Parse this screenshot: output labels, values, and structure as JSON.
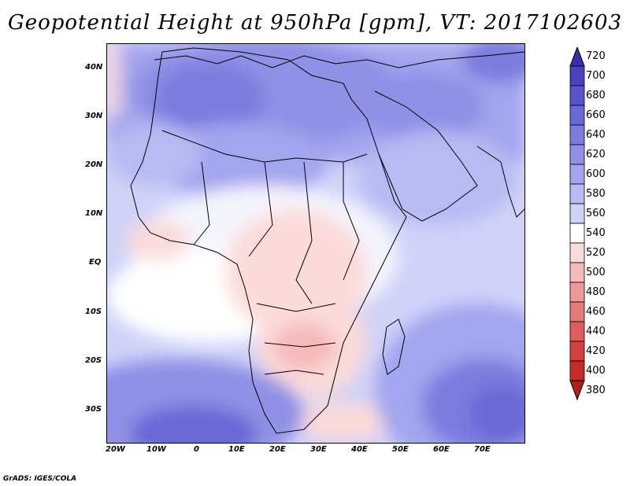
{
  "title": "Geopotential Height at 950hPa [gpm], VT: 2017102603",
  "credit": "GrADS: IGES/COLA",
  "chart_data": {
    "type": "contour-map",
    "variable": "Geopotential Height",
    "level": "950hPa",
    "units": "gpm",
    "valid_time": "2017102603",
    "region": "Africa and Middle East",
    "lon_range": [
      -22,
      80
    ],
    "lat_range": [
      -37,
      45
    ],
    "lat_ticks": [
      "40N",
      "30N",
      "20N",
      "10N",
      "EQ",
      "10S",
      "20S",
      "30S"
    ],
    "lon_ticks": [
      "20W",
      "10W",
      "0",
      "10E",
      "20E",
      "30E",
      "40E",
      "50E",
      "60E",
      "70E"
    ],
    "colorbar_levels": [
      "720",
      "700",
      "680",
      "660",
      "640",
      "620",
      "600",
      "580",
      "560",
      "540",
      "520",
      "500",
      "480",
      "460",
      "440",
      "420",
      "400",
      "380"
    ],
    "colorbar_colors": [
      "#3a2db0",
      "#4a40c0",
      "#5a54cc",
      "#6a68d6",
      "#7c7cde",
      "#8f90e6",
      "#a3a5ee",
      "#b8baf3",
      "#d0d2f8",
      "#ffffff",
      "#fbdada",
      "#f6baba",
      "#ee9a9a",
      "#e67a7a",
      "#dd5c5c",
      "#d44040",
      "#c62a2a",
      "#b21e1e"
    ],
    "colorbar_min": 380,
    "colorbar_max": 720,
    "colorbar_interval": 20
  }
}
